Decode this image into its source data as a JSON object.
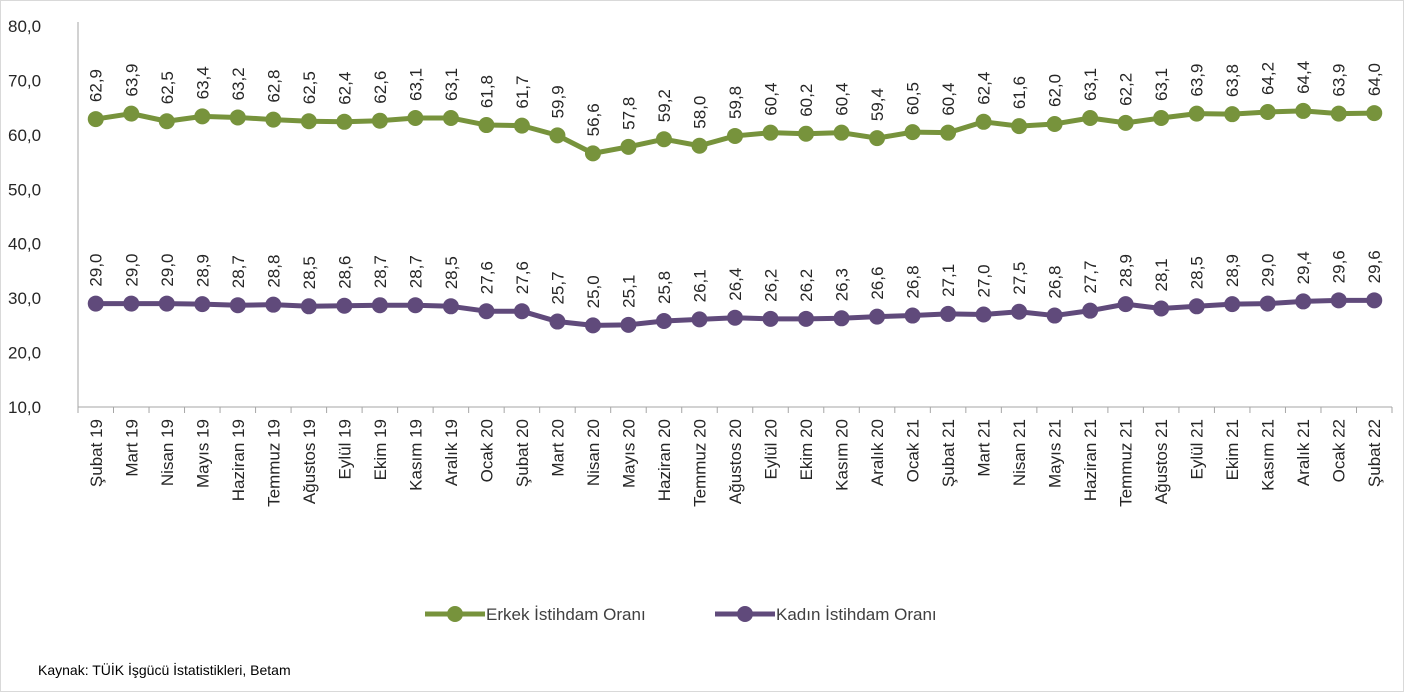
{
  "chart_data": {
    "type": "line",
    "title": "",
    "xlabel": "",
    "ylabel": "",
    "ylim": [
      10,
      80
    ],
    "y_ticks": [
      "10,0",
      "20,0",
      "30,0",
      "40,0",
      "50,0",
      "60,0",
      "70,0",
      "80,0"
    ],
    "grid": false,
    "legend_position": "bottom",
    "categories": [
      "Şubat 19",
      "Mart 19",
      "Nisan 19",
      "Mayıs 19",
      "Haziran 19",
      "Temmuz 19",
      "Ağustos 19",
      "Eylül 19",
      "Ekim 19",
      "Kasım 19",
      "Aralık 19",
      "Ocak 20",
      "Şubat 20",
      "Mart 20",
      "Nisan 20",
      "Mayıs 20",
      "Haziran 20",
      "Temmuz 20",
      "Ağustos 20",
      "Eylül 20",
      "Ekim 20",
      "Kasım 20",
      "Aralık 20",
      "Ocak 21",
      "Şubat 21",
      "Mart 21",
      "Nisan 21",
      "Mayıs 21",
      "Haziran 21",
      "Temmuz 21",
      "Ağustos 21",
      "Eylül 21",
      "Ekim 21",
      "Kasım 21",
      "Aralık 21",
      "Ocak 22",
      "Şubat 22"
    ],
    "series": [
      {
        "name": "Erkek İstihdam Oranı",
        "color": "#77933c",
        "values": [
          62.9,
          63.9,
          62.5,
          63.4,
          63.2,
          62.8,
          62.5,
          62.4,
          62.6,
          63.1,
          63.1,
          61.8,
          61.7,
          59.9,
          56.6,
          57.8,
          59.2,
          58.0,
          59.8,
          60.4,
          60.2,
          60.4,
          59.4,
          60.5,
          60.4,
          62.4,
          61.6,
          62.0,
          63.1,
          62.2,
          63.1,
          63.9,
          63.8,
          64.2,
          64.4,
          63.9,
          64.0
        ],
        "labels": [
          "62,9",
          "63,9",
          "62,5",
          "63,4",
          "63,2",
          "62,8",
          "62,5",
          "62,4",
          "62,6",
          "63,1",
          "63,1",
          "61,8",
          "61,7",
          "59,9",
          "56,6",
          "57,8",
          "59,2",
          "58,0",
          "59,8",
          "60,4",
          "60,2",
          "60,4",
          "59,4",
          "60,5",
          "60,4",
          "62,4",
          "61,6",
          "62,0",
          "63,1",
          "62,2",
          "63,1",
          "63,9",
          "63,8",
          "64,2",
          "64,4",
          "63,9",
          "64,0"
        ]
      },
      {
        "name": "Kadın İstihdam Oranı",
        "color": "#604a7b",
        "values": [
          29.0,
          29.0,
          29.0,
          28.9,
          28.7,
          28.8,
          28.5,
          28.6,
          28.7,
          28.7,
          28.5,
          27.6,
          27.6,
          25.7,
          25.0,
          25.1,
          25.8,
          26.1,
          26.4,
          26.2,
          26.2,
          26.3,
          26.6,
          26.8,
          27.1,
          27.0,
          27.5,
          26.8,
          27.7,
          28.9,
          28.1,
          28.5,
          28.9,
          29.0,
          29.4,
          29.6,
          29.6
        ],
        "labels": [
          "29,0",
          "29,0",
          "29,0",
          "28,9",
          "28,7",
          "28,8",
          "28,5",
          "28,6",
          "28,7",
          "28,7",
          "28,5",
          "27,6",
          "27,6",
          "25,7",
          "25,0",
          "25,1",
          "25,8",
          "26,1",
          "26,4",
          "26,2",
          "26,2",
          "26,3",
          "26,6",
          "26,8",
          "27,1",
          "27,0",
          "27,5",
          "26,8",
          "27,7",
          "28,9",
          "28,1",
          "28,5",
          "28,9",
          "29,0",
          "29,4",
          "29,6",
          "29,6"
        ]
      }
    ]
  },
  "source_note": "Kaynak: TÜİK İşgücü İstatistikleri, Betam"
}
